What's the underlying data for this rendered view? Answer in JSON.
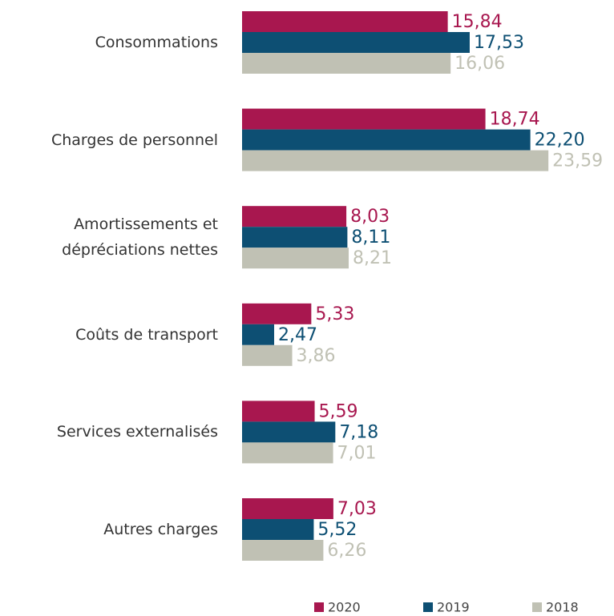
{
  "chart_data": {
    "type": "bar",
    "orientation": "horizontal",
    "categories": [
      "Consommations",
      "Charges de personnel",
      "Amortissements et\ndépréciations nettes",
      "Coûts de transport",
      "Services externalisés",
      "Autres charges"
    ],
    "series": [
      {
        "name": "2020",
        "color": "#a8174f",
        "values": [
          15.84,
          18.74,
          8.03,
          5.33,
          5.59,
          7.03
        ],
        "value_labels": [
          "15,84",
          "18,74",
          "8,03",
          "5,33",
          "5,59",
          "7,03"
        ]
      },
      {
        "name": "2019",
        "color": "#0d4f73",
        "values": [
          17.53,
          22.2,
          8.11,
          2.47,
          7.18,
          5.52
        ],
        "value_labels": [
          "17,53",
          "22,20",
          "8,11",
          "2,47",
          "7,18",
          "5,52"
        ]
      },
      {
        "name": "2018",
        "color": "#c0c1b4",
        "values": [
          16.06,
          23.59,
          8.21,
          3.86,
          7.01,
          6.26
        ],
        "value_labels": [
          "16,06",
          "23,59",
          "8,21",
          "3,86",
          "7,01",
          "6,26"
        ]
      }
    ],
    "legend": "bottom-right"
  }
}
